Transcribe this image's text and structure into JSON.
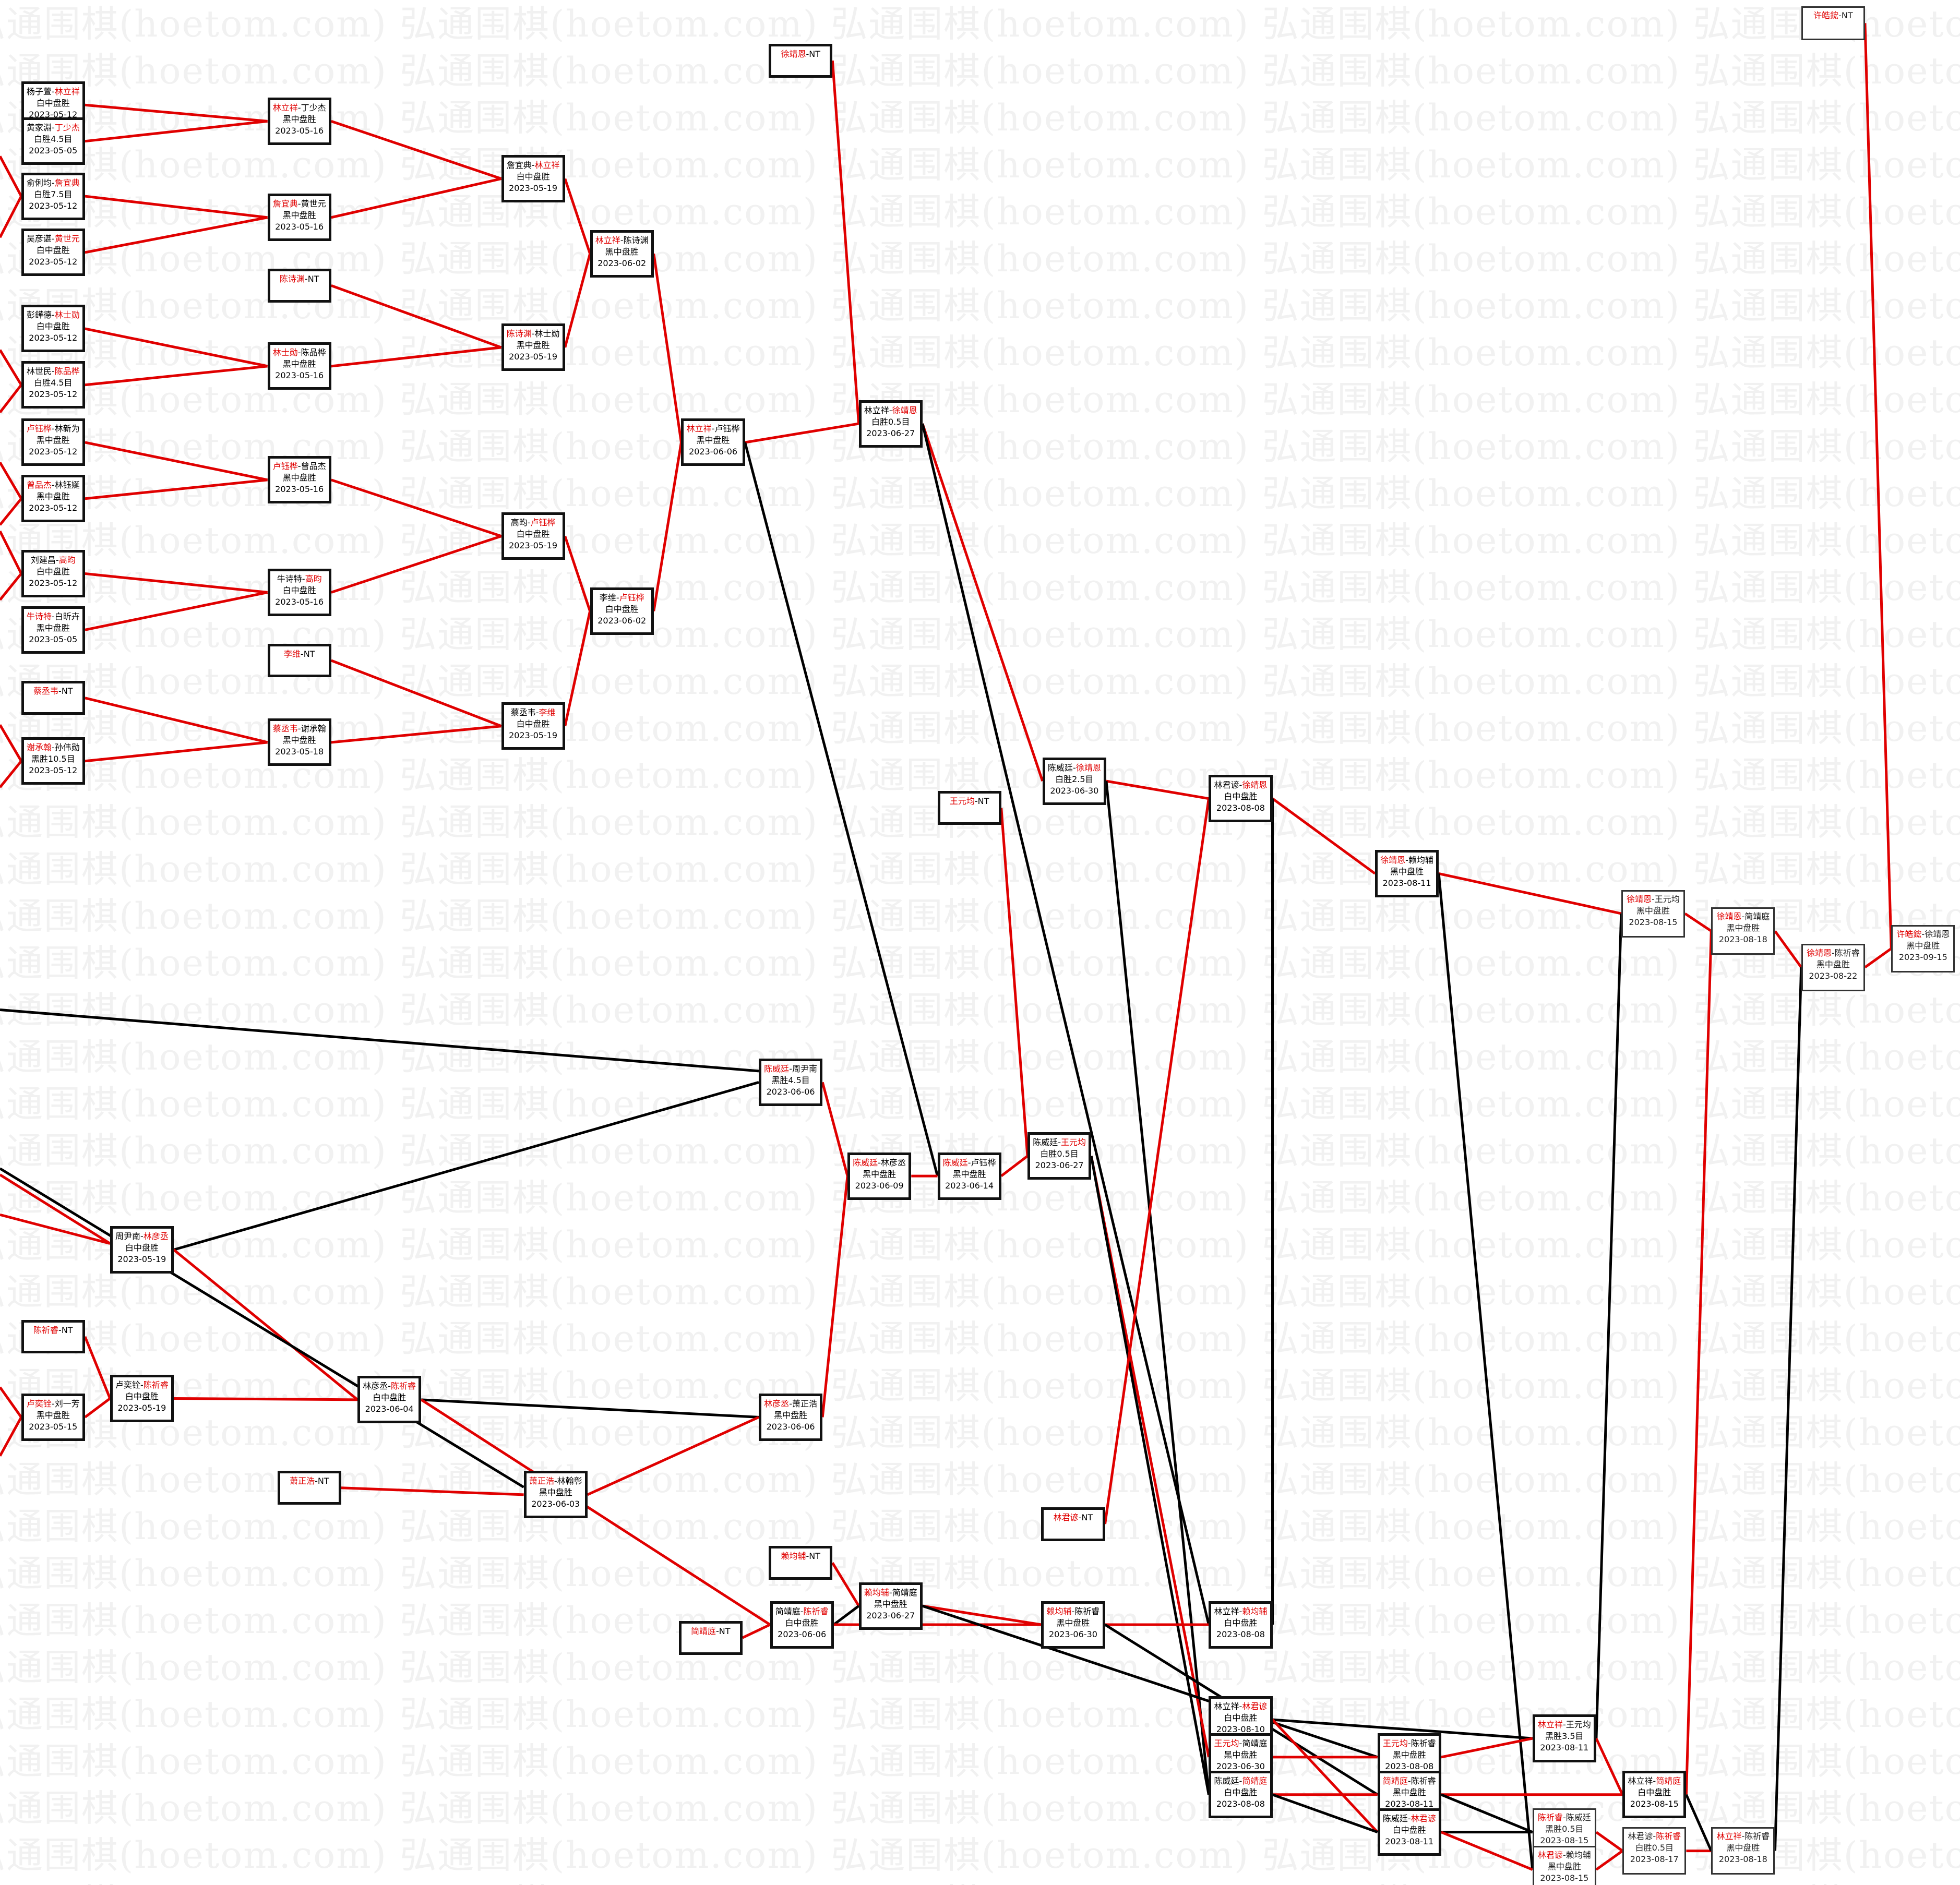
{
  "watermark": "弘通围棋(hoetom.com)",
  "colors": {
    "winner": "#e00000",
    "advance_line": "#e00000",
    "loser_line": "#000000"
  },
  "matches": [
    {
      "p1": "杨子萱",
      "p2": "林立祥",
      "winner": 2,
      "result": "白中盘胜",
      "date": "2023-05-12"
    },
    {
      "p1": "黄家淵",
      "p2": "丁少杰",
      "winner": 2,
      "result": "白胜4.5目",
      "date": "2023-05-05"
    },
    {
      "p1": "俞俐均",
      "p2": "詹宜典",
      "winner": 2,
      "result": "白胜7.5目",
      "date": "2023-05-12"
    },
    {
      "p1": "吴彦谌",
      "p2": "黄世元",
      "winner": 2,
      "result": "白中盘胜",
      "date": "2023-05-12"
    },
    {
      "p1": "彭鏵德",
      "p2": "林士勋",
      "winner": 2,
      "result": "白中盘胜",
      "date": "2023-05-12"
    },
    {
      "p1": "林世民",
      "p2": "陈品桦",
      "winner": 2,
      "result": "白胜4.5目",
      "date": "2023-05-12"
    },
    {
      "p1": "卢钰桦",
      "p2": "林新为",
      "winner": 1,
      "result": "黑中盘胜",
      "date": "2023-05-12"
    },
    {
      "p1": "曾品杰",
      "p2": "林钰娫",
      "winner": 1,
      "result": "黑中盘胜",
      "date": "2023-05-12"
    },
    {
      "p1": "刘建昌",
      "p2": "高昀",
      "winner": 2,
      "result": "白中盘胜",
      "date": "2023-05-12"
    },
    {
      "p1": "牛诗特",
      "p2": "白昕卉",
      "winner": 1,
      "result": "黑中盘胜",
      "date": "2023-05-05"
    },
    {
      "p1": "蔡丞韦",
      "p2": "NT",
      "winner": 1,
      "result": "",
      "date": ""
    },
    {
      "p1": "谢承翰",
      "p2": "孙伟勋",
      "winner": 1,
      "result": "黑胜10.5目",
      "date": "2023-05-12"
    },
    {
      "p1": "陈祈睿",
      "p2": "NT",
      "winner": 1,
      "result": "",
      "date": ""
    },
    {
      "p1": "卢奕铨",
      "p2": "刘一芳",
      "winner": 1,
      "result": "黑中盘胜",
      "date": "2023-05-15"
    },
    {
      "p1": "林立祥",
      "p2": "丁少杰",
      "winner": 1,
      "result": "黑中盘胜",
      "date": "2023-05-16"
    },
    {
      "p1": "詹宜典",
      "p2": "黄世元",
      "winner": 1,
      "result": "黑中盘胜",
      "date": "2023-05-16"
    },
    {
      "p1": "陈诗渊",
      "p2": "NT",
      "winner": 1,
      "result": "",
      "date": ""
    },
    {
      "p1": "林士勋",
      "p2": "陈品桦",
      "winner": 1,
      "result": "黑中盘胜",
      "date": "2023-05-16"
    },
    {
      "p1": "卢钰桦",
      "p2": "曾品杰",
      "winner": 1,
      "result": "黑中盘胜",
      "date": "2023-05-16"
    },
    {
      "p1": "牛诗特",
      "p2": "高昀",
      "winner": 2,
      "result": "白中盘胜",
      "date": "2023-05-16"
    },
    {
      "p1": "李维",
      "p2": "NT",
      "winner": 1,
      "result": "",
      "date": ""
    },
    {
      "p1": "蔡丞韦",
      "p2": "谢承翰",
      "winner": 1,
      "result": "黑中盘胜",
      "date": "2023-05-18"
    },
    {
      "p1": "周尹南",
      "p2": "林彦丞",
      "winner": 2,
      "result": "白中盘胜",
      "date": "2023-05-19"
    },
    {
      "p1": "卢奕铨",
      "p2": "陈祈睿",
      "winner": 2,
      "result": "白中盘胜",
      "date": "2023-05-19"
    },
    {
      "p1": "詹宜典",
      "p2": "林立祥",
      "winner": 2,
      "result": "白中盘胜",
      "date": "2023-05-19"
    },
    {
      "p1": "陈诗渊",
      "p2": "林士勋",
      "winner": 1,
      "result": "黑中盘胜",
      "date": "2023-05-19"
    },
    {
      "p1": "高昀",
      "p2": "卢钰桦",
      "winner": 2,
      "result": "白中盘胜",
      "date": "2023-05-19"
    },
    {
      "p1": "蔡丞韦",
      "p2": "李维",
      "winner": 2,
      "result": "白中盘胜",
      "date": "2023-05-19"
    },
    {
      "p1": "林立祥",
      "p2": "陈诗渊",
      "winner": 1,
      "result": "黑中盘胜",
      "date": "2023-06-02"
    },
    {
      "p1": "李维",
      "p2": "卢钰桦",
      "winner": 2,
      "result": "白中盘胜",
      "date": "2023-06-02"
    },
    {
      "p1": "林立祥",
      "p2": "卢钰桦",
      "winner": 1,
      "result": "黑中盘胜",
      "date": "2023-06-06"
    },
    {
      "p1": "徐靖恩",
      "p2": "NT",
      "winner": 1,
      "result": "",
      "date": ""
    },
    {
      "p1": "林立祥",
      "p2": "徐靖恩",
      "winner": 2,
      "result": "白胜0.5目",
      "date": "2023-06-27"
    },
    {
      "p1": "陈威廷",
      "p2": "徐靖恩",
      "winner": 2,
      "result": "白胜2.5目",
      "date": "2023-06-30"
    },
    {
      "p1": "王元均",
      "p2": "NT",
      "winner": 1,
      "result": "",
      "date": ""
    },
    {
      "p1": "林君谚",
      "p2": "徐靖恩",
      "winner": 2,
      "result": "白中盘胜",
      "date": "2023-08-08"
    },
    {
      "p1": "徐靖恩",
      "p2": "赖均辅",
      "winner": 1,
      "result": "黑中盘胜",
      "date": "2023-08-11"
    },
    {
      "p1": "徐靖恩",
      "p2": "王元均",
      "winner": 1,
      "result": "黑中盘胜",
      "date": "2023-08-15"
    },
    {
      "p1": "徐靖恩",
      "p2": "简靖庭",
      "winner": 1,
      "result": "黑中盘胜",
      "date": "2023-08-18"
    },
    {
      "p1": "徐靖恩",
      "p2": "陈祈睿",
      "winner": 1,
      "result": "黑中盘胜",
      "date": "2023-08-22"
    },
    {
      "p1": "许皓鋐",
      "p2": "徐靖恩",
      "winner": 1,
      "result": "黑中盘胜",
      "date": "2023-09-15"
    },
    {
      "p1": "许皓鋐",
      "p2": "NT",
      "winner": 1,
      "result": "",
      "date": ""
    },
    {
      "p1": "陈威廷",
      "p2": "周尹南",
      "winner": 1,
      "result": "黑胜4.5目",
      "date": "2023-06-06"
    },
    {
      "p1": "陈威廷",
      "p2": "林彦丞",
      "winner": 1,
      "result": "黑中盘胜",
      "date": "2023-06-09"
    },
    {
      "p1": "陈威廷",
      "p2": "卢钰桦",
      "winner": 1,
      "result": "黑中盘胜",
      "date": "2023-06-14"
    },
    {
      "p1": "陈威廷",
      "p2": "王元均",
      "winner": 2,
      "result": "白胜0.5目",
      "date": "2023-06-27"
    },
    {
      "p1": "林彦丞",
      "p2": "陈祈睿",
      "winner": 2,
      "result": "白中盘胜",
      "date": "2023-06-04"
    },
    {
      "p1": "林彦丞",
      "p2": "萧正浩",
      "winner": 1,
      "result": "黑中盘胜",
      "date": "2023-06-06"
    },
    {
      "p1": "萧正浩",
      "p2": "NT",
      "winner": 1,
      "result": "",
      "date": ""
    },
    {
      "p1": "萧正浩",
      "p2": "林翰彰",
      "winner": 1,
      "result": "黑中盘胜",
      "date": "2023-06-03"
    },
    {
      "p1": "林君谚",
      "p2": "NT",
      "winner": 1,
      "result": "",
      "date": ""
    },
    {
      "p1": "赖均辅",
      "p2": "NT",
      "winner": 1,
      "result": "",
      "date": ""
    },
    {
      "p1": "简靖庭",
      "p2": "NT",
      "winner": 1,
      "result": "",
      "date": ""
    },
    {
      "p1": "简靖庭",
      "p2": "陈祈睿",
      "winner": 2,
      "result": "白中盘胜",
      "date": "2023-06-06"
    },
    {
      "p1": "赖均辅",
      "p2": "简靖庭",
      "winner": 1,
      "result": "黑中盘胜",
      "date": "2023-06-27"
    },
    {
      "p1": "赖均辅",
      "p2": "陈祈睿",
      "winner": 1,
      "result": "黑中盘胜",
      "date": "2023-06-30"
    },
    {
      "p1": "林立祥",
      "p2": "赖均辅",
      "winner": 2,
      "result": "白中盘胜",
      "date": "2023-08-08"
    },
    {
      "p1": "林立祥",
      "p2": "林君谚",
      "winner": 2,
      "result": "白中盘胜",
      "date": "2023-08-10"
    },
    {
      "p1": "王元均",
      "p2": "简靖庭",
      "winner": 1,
      "result": "黑中盘胜",
      "date": "2023-06-30"
    },
    {
      "p1": "陈威廷",
      "p2": "简靖庭",
      "winner": 2,
      "result": "白中盘胜",
      "date": "2023-08-08"
    },
    {
      "p1": "王元均",
      "p2": "陈祈睿",
      "winner": 1,
      "result": "黑中盘胜",
      "date": "2023-08-08"
    },
    {
      "p1": "简靖庭",
      "p2": "陈祈睿",
      "winner": 1,
      "result": "黑中盘胜",
      "date": "2023-08-11"
    },
    {
      "p1": "陈威廷",
      "p2": "林君谚",
      "winner": 2,
      "result": "白中盘胜",
      "date": "2023-08-11"
    },
    {
      "p1": "林立祥",
      "p2": "王元均",
      "winner": 1,
      "result": "黑胜3.5目",
      "date": "2023-08-11"
    },
    {
      "p1": "陈祈睿",
      "p2": "陈威廷",
      "winner": 1,
      "result": "黑胜0.5目",
      "date": "2023-08-15"
    },
    {
      "p1": "林君谚",
      "p2": "赖均辅",
      "winner": 1,
      "result": "黑中盘胜",
      "date": "2023-08-15"
    },
    {
      "p1": "林立祥",
      "p2": "简靖庭",
      "winner": 2,
      "result": "白中盘胜",
      "date": "2023-08-15"
    },
    {
      "p1": "林君谚",
      "p2": "陈祈睿",
      "winner": 2,
      "result": "白胜0.5目",
      "date": "2023-08-17"
    },
    {
      "p1": "林立祥",
      "p2": "陈祈睿",
      "winner": 1,
      "result": "黑中盘胜",
      "date": "2023-08-18"
    }
  ]
}
